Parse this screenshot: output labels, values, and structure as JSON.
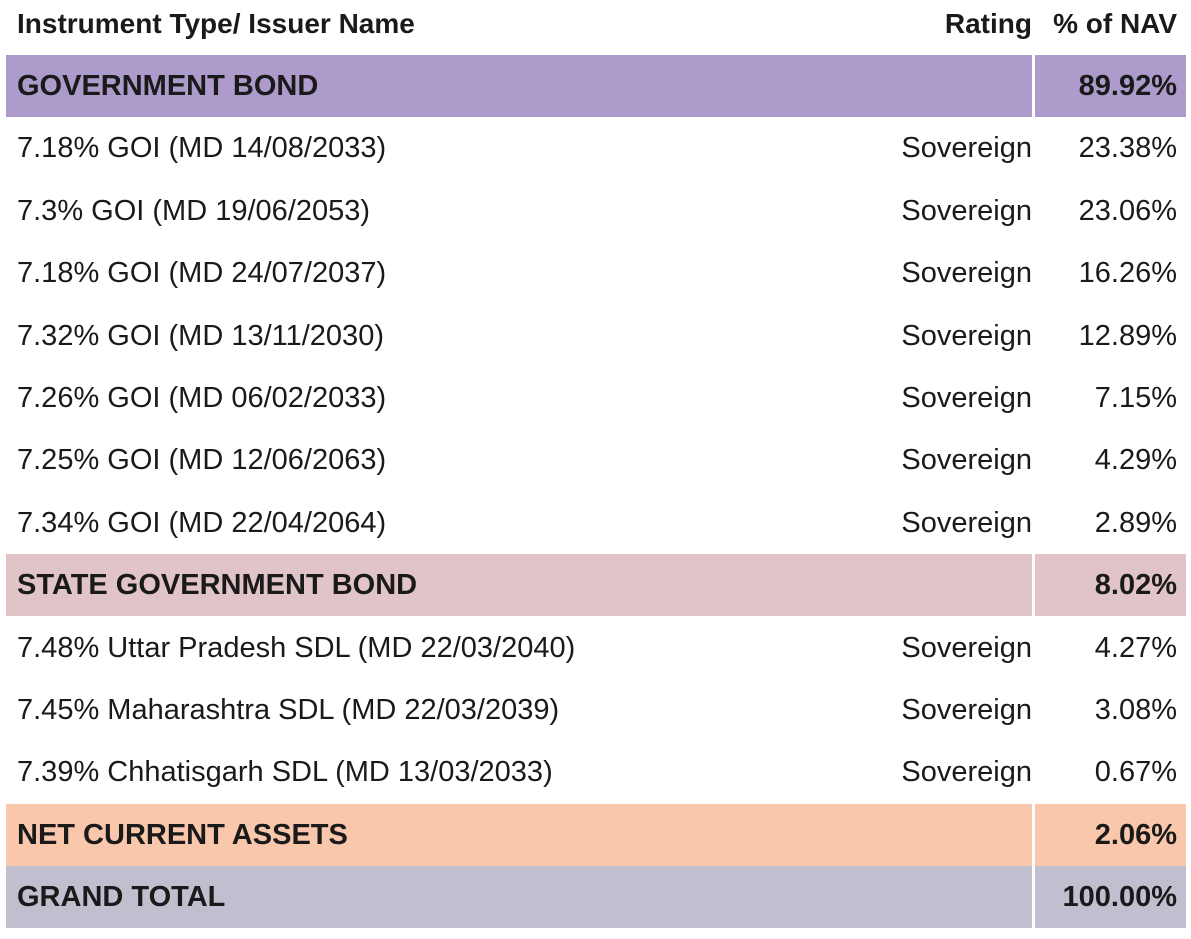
{
  "header": {
    "name": "Instrument Type/ Issuer Name",
    "rating": "Rating",
    "nav": "% of NAV"
  },
  "colors": {
    "government_bond": "#ac9bcb",
    "state_government_bond": "#e1c4c8",
    "net_current_assets": "#f9c7ab",
    "grand_total": "#c0bfcf"
  },
  "sections": [
    {
      "category": "GOVERNMENT BOND",
      "nav": "89.92%",
      "items": [
        {
          "name": "7.18% GOI (MD 14/08/2033)",
          "rating": "Sovereign",
          "nav": "23.38%"
        },
        {
          "name": "7.3% GOI (MD 19/06/2053)",
          "rating": "Sovereign",
          "nav": "23.06%"
        },
        {
          "name": "7.18% GOI (MD 24/07/2037)",
          "rating": "Sovereign",
          "nav": "16.26%"
        },
        {
          "name": "7.32% GOI (MD 13/11/2030)",
          "rating": "Sovereign",
          "nav": "12.89%"
        },
        {
          "name": "7.26% GOI (MD 06/02/2033)",
          "rating": "Sovereign",
          "nav": "7.15%"
        },
        {
          "name": "7.25% GOI (MD 12/06/2063)",
          "rating": "Sovereign",
          "nav": "4.29%"
        },
        {
          "name": "7.34% GOI (MD 22/04/2064)",
          "rating": "Sovereign",
          "nav": "2.89%"
        }
      ]
    },
    {
      "category": "STATE GOVERNMENT BOND",
      "nav": "8.02%",
      "items": [
        {
          "name": "7.48% Uttar Pradesh SDL (MD 22/03/2040)",
          "rating": "Sovereign",
          "nav": "4.27%"
        },
        {
          "name": "7.45% Maharashtra SDL (MD 22/03/2039)",
          "rating": "Sovereign",
          "nav": "3.08%"
        },
        {
          "name": "7.39% Chhatisgarh SDL (MD 13/03/2033)",
          "rating": "Sovereign",
          "nav": "0.67%"
        }
      ]
    }
  ],
  "net_current_assets": {
    "label": "NET CURRENT ASSETS",
    "nav": "2.06%"
  },
  "grand_total": {
    "label": "GRAND TOTAL",
    "nav": "100.00%"
  }
}
